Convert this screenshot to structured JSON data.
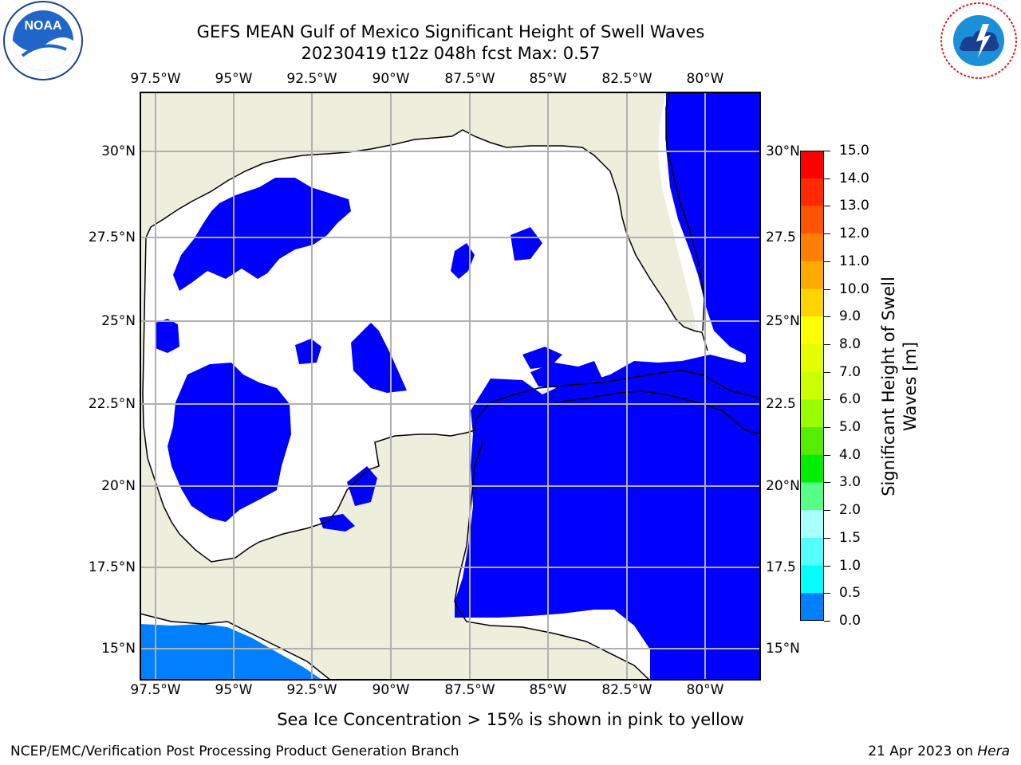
{
  "title_line1": "GEFS MEAN Gulf of Mexico Significant Height of Swell Waves",
  "title_line2": "20230419 t12z 048h fcst   Max: 0.57",
  "logos": {
    "left": "noaa-logo",
    "right": "nws-logo",
    "noaa_text": "NOAA",
    "nws_ring_text": "NATIONAL WEATHER SERVICE"
  },
  "lon_ticks": [
    "97.5°W",
    "95°W",
    "92.5°W",
    "90°W",
    "87.5°W",
    "85°W",
    "82.5°W",
    "80°W"
  ],
  "lat_ticks_left": [
    "30°N",
    "27.5°N",
    "25°N",
    "22.5°N",
    "20°N",
    "17.5°N",
    "15°N"
  ],
  "lat_ticks_right": [
    "30°N",
    "27.5",
    "25°N",
    "22.5",
    "20°N",
    "17.5",
    "15°N"
  ],
  "colorbar": {
    "title_line1": "Significant Height of Swell",
    "title_line2": "Waves [m]",
    "labels": [
      "15.0",
      "14.0",
      "13.0",
      "12.0",
      "11.0",
      "10.0",
      "9.0",
      "8.0",
      "7.0",
      "6.0",
      "5.0",
      "4.0",
      "3.0",
      "2.0",
      "1.5",
      "1.0",
      "0.5",
      "0.0"
    ],
    "colors": [
      "#ff0000",
      "#ff2a00",
      "#ff5500",
      "#ff8000",
      "#ffaa00",
      "#ffd400",
      "#ffff00",
      "#e6ff00",
      "#ccff00",
      "#99ff00",
      "#55ee00",
      "#00ee00",
      "#55ff88",
      "#aaffff",
      "#55ffff",
      "#00ffff",
      "#0080ff",
      "#0000ff"
    ]
  },
  "map_colors": {
    "land": "#eeeedc",
    "ocean_low": "#0000ff",
    "ocean_mid": "#0080ff",
    "water_blank": "#ffffff",
    "grid": "#b0b0b0"
  },
  "note": "Sea Ice Concentration > 15% is shown in pink to yellow",
  "footer_left": "NCEP/EMC/Verification Post Processing Product Generation Branch",
  "footer_date": "21 Apr 2023 on ",
  "footer_host": "Hera"
}
